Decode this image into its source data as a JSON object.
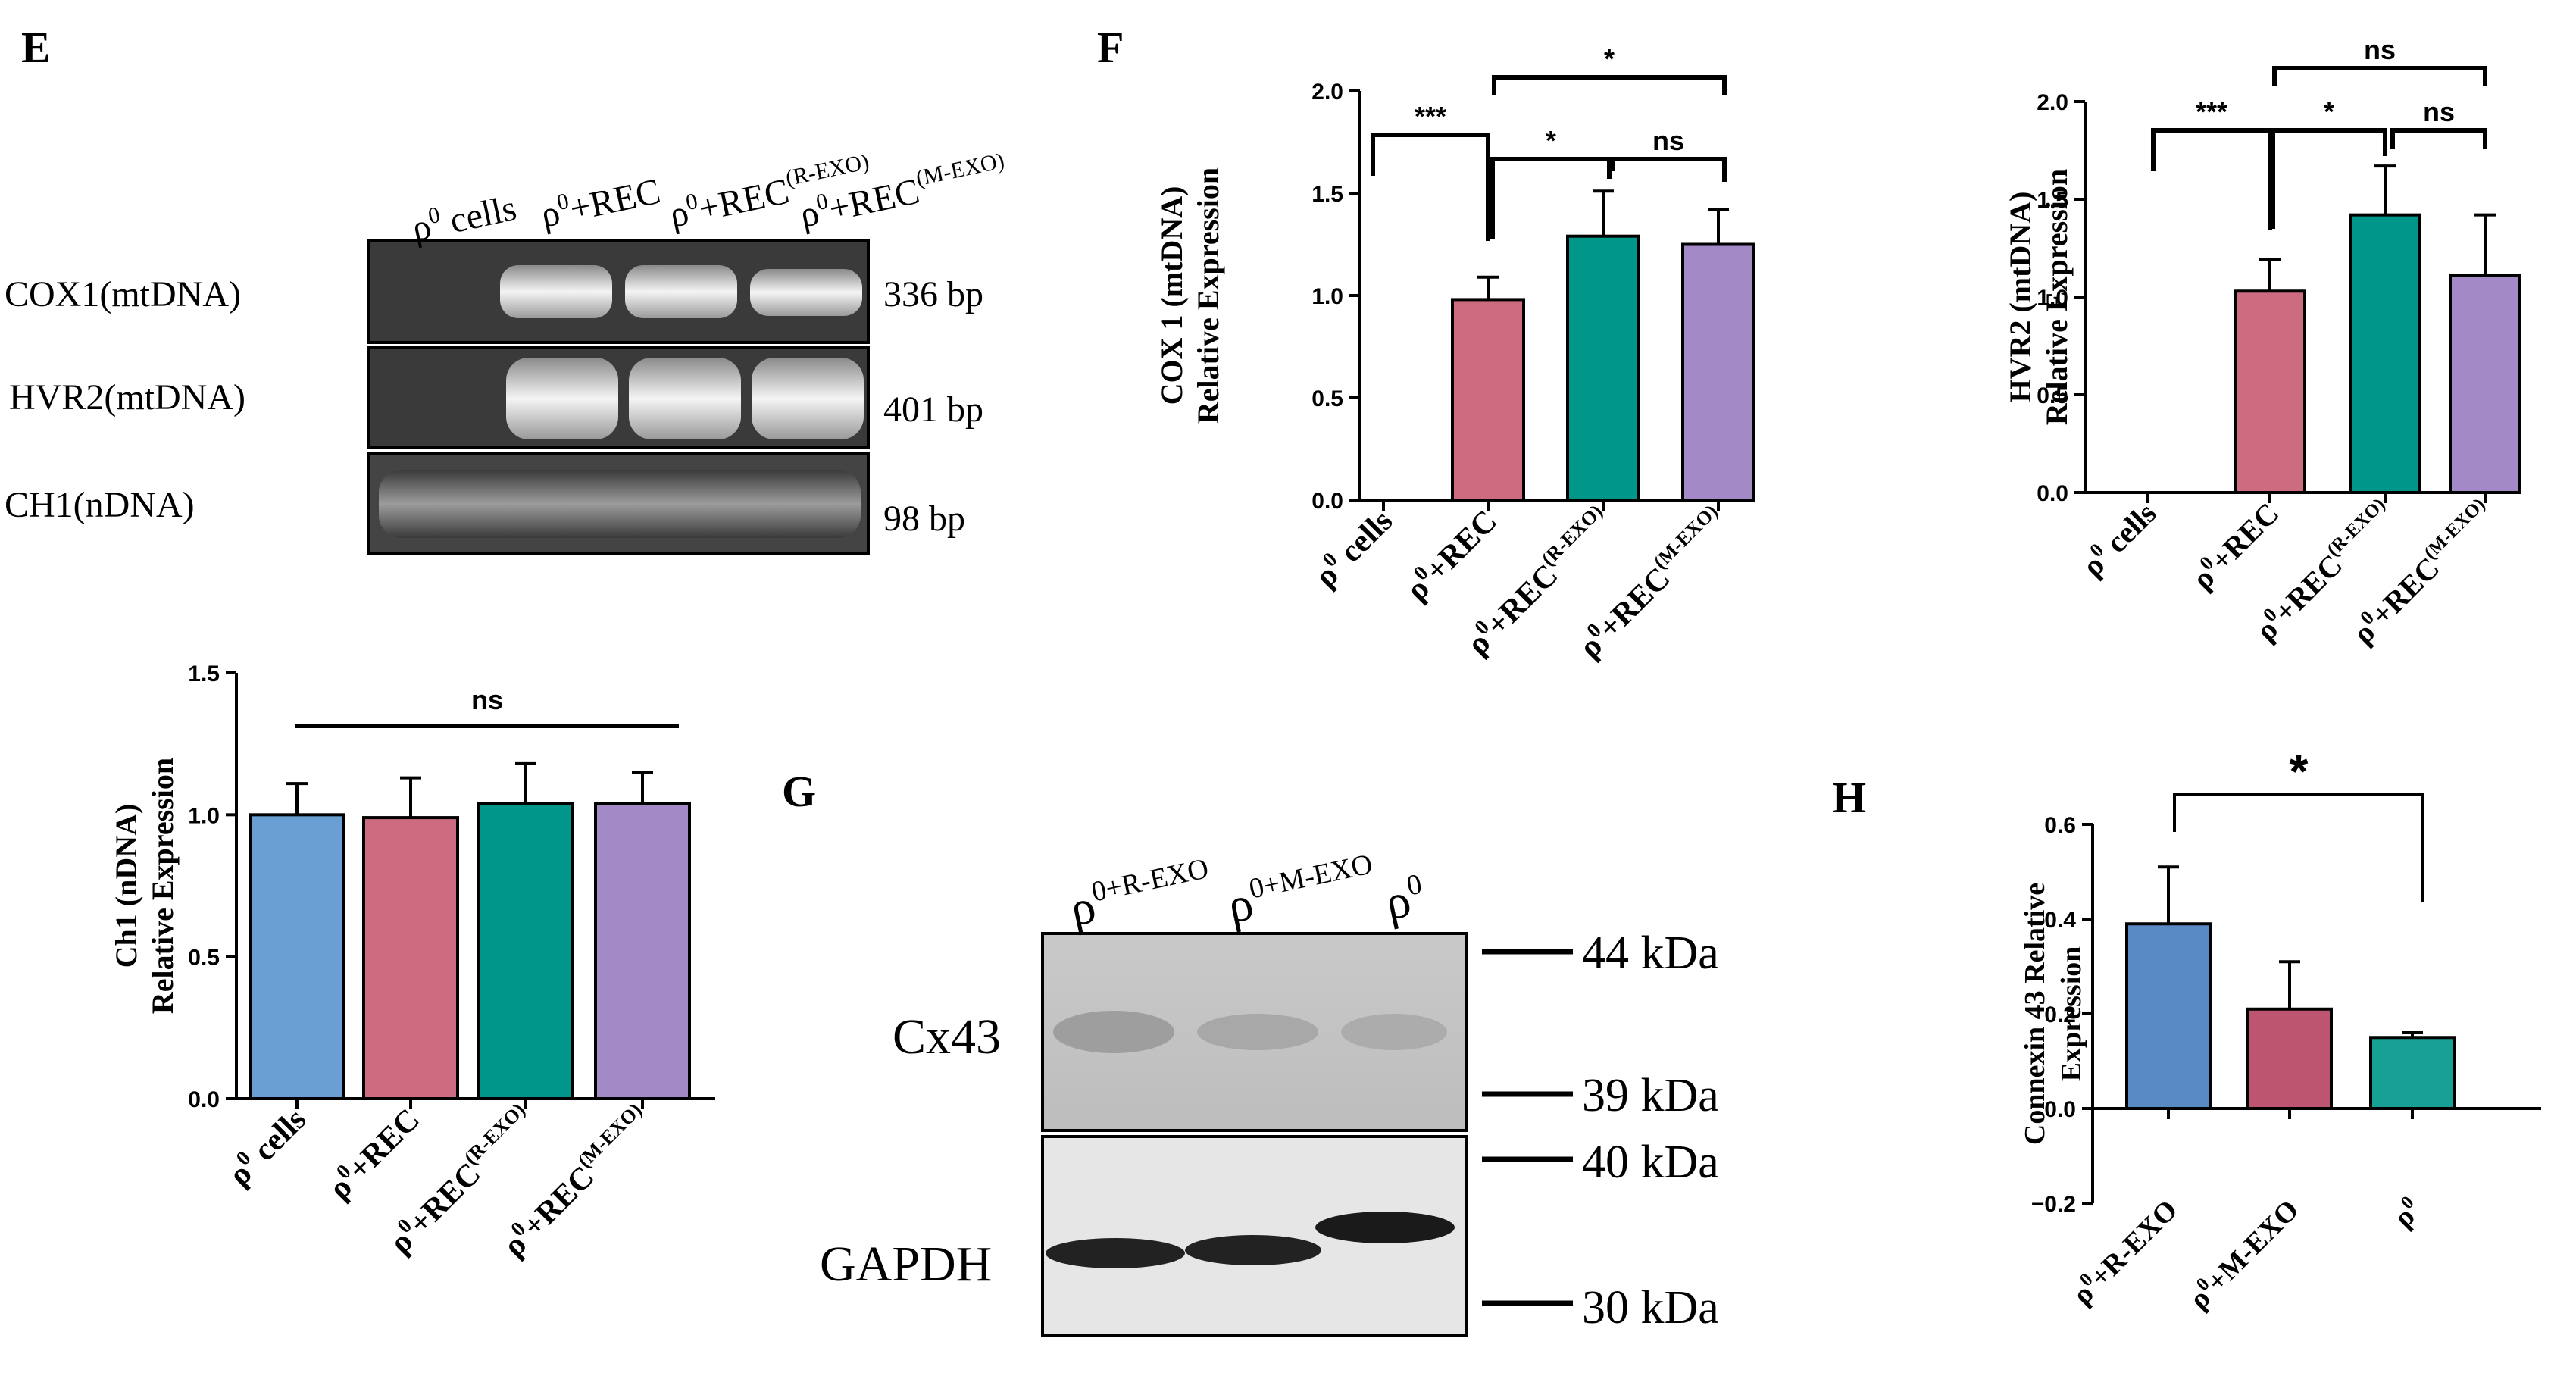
{
  "colors": {
    "blue": "#6a9fd4",
    "pink": "#cd6b80",
    "teal": "#00968a",
    "purple": "#a38ac6",
    "h_blue": "#5a8ac4",
    "h_pink": "#bd5470",
    "h_teal": "#17a094"
  },
  "panels": {
    "E": "E",
    "F": "F",
    "G": "G",
    "H": "H"
  },
  "gel": {
    "lanes": [
      {
        "base": "ρ",
        "sup": "0",
        "rest": " cells",
        "sup2": ""
      },
      {
        "base": "ρ",
        "sup": "0",
        "rest": "+REC",
        "sup2": ""
      },
      {
        "base": "ρ",
        "sup": "0",
        "rest": "+REC",
        "sup2": "(R-EXO)"
      },
      {
        "base": "ρ",
        "sup": "0",
        "rest": "+REC",
        "sup2": "(M-EXO)"
      }
    ],
    "rows": [
      {
        "label": "COX1(mtDNA)",
        "size": "336 bp"
      },
      {
        "label": "HVR2(mtDNA)",
        "size": "401 bp"
      },
      {
        "label": "CH1(nDNA)",
        "size": "98 bp"
      }
    ]
  },
  "blot": {
    "lanes": [
      {
        "base": "ρ",
        "sup": "0+R-EXO"
      },
      {
        "base": "ρ",
        "sup": "0+M-EXO"
      },
      {
        "base": "ρ",
        "sup": "0"
      }
    ],
    "cx_label": "Cx43",
    "gapdh_label": "GAPDH",
    "markers": [
      "44 kDa",
      "39 kDa",
      "40 kDa",
      "30 kDa"
    ]
  },
  "chart_data": [
    {
      "panel": "F",
      "type": "bar",
      "categories": [
        "ρ0 cells",
        "ρ0+REC",
        "ρ0+REC(R-EXO)",
        "ρ0+REC(M-EXO)"
      ],
      "values": [
        0,
        0.98,
        1.29,
        1.25
      ],
      "errors": [
        0,
        0.11,
        0.22,
        0.17
      ],
      "ylabel": [
        "COX 1 (mtDNA)",
        "Relative Expression"
      ],
      "ylim": [
        0,
        2.0
      ],
      "yticks": [
        "0.0",
        "0.5",
        "1.0",
        "1.5",
        "2.0"
      ],
      "annotations": [
        "***",
        "*",
        "ns",
        "*"
      ]
    },
    {
      "panel": "F2",
      "type": "bar",
      "categories": [
        "ρ0 cells",
        "ρ0+REC",
        "ρ0+REC(R-EXO)",
        "ρ0+REC(M-EXO)"
      ],
      "values": [
        0,
        1.03,
        1.42,
        1.11
      ],
      "errors": [
        0,
        0.16,
        0.25,
        0.31
      ],
      "ylabel": [
        "HVR2 (mtDNA)",
        "Relative Expression"
      ],
      "ylim": [
        0,
        2.0
      ],
      "yticks": [
        "0.0",
        "0.5",
        "1.0",
        "1.5",
        "2.0"
      ],
      "annotations": [
        "***",
        "*",
        "ns",
        "ns"
      ]
    },
    {
      "panel": "E2",
      "type": "bar",
      "categories": [
        "ρ0 cells",
        "ρ0+REC",
        "ρ0+REC(R-EXO)",
        "ρ0+REC(M-EXO)"
      ],
      "values": [
        1.0,
        0.99,
        1.04,
        1.04
      ],
      "errors": [
        0.11,
        0.14,
        0.14,
        0.11
      ],
      "ylabel": [
        "Ch1 (nDNA)",
        "Relative Expression"
      ],
      "ylim": [
        0,
        1.5
      ],
      "yticks": [
        "0.0",
        "0.5",
        "1.0",
        "1.5"
      ],
      "annotations": [
        "ns"
      ]
    },
    {
      "panel": "H",
      "type": "bar",
      "categories": [
        "ρ0+R-EXO",
        "ρ0+M-EXO",
        "ρ0"
      ],
      "values": [
        0.39,
        0.21,
        0.15
      ],
      "errors": [
        0.12,
        0.1,
        0.01
      ],
      "ylabel": [
        "Connexin 43 Relative",
        "Expression"
      ],
      "ylim": [
        -0.2,
        0.6
      ],
      "yticks": [
        "−0.2",
        "0.0",
        "0.2",
        "0.4",
        "0.6"
      ],
      "annotations": [
        "*"
      ]
    }
  ]
}
